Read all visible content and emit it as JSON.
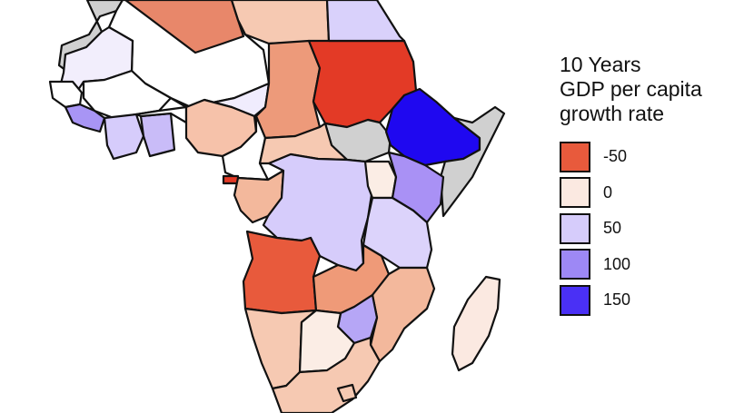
{
  "legend": {
    "title_lines": [
      "10 Years",
      "GDP per capita",
      "growth rate"
    ],
    "items": [
      {
        "label": "-50",
        "value": -50,
        "color": "#e85a3c"
      },
      {
        "label": "0",
        "value": 0,
        "color": "#fbe9e1"
      },
      {
        "label": "50",
        "value": 50,
        "color": "#d6ccfb"
      },
      {
        "label": "100",
        "value": 100,
        "color": "#9d88f5"
      },
      {
        "label": "150",
        "value": 150,
        "color": "#4a30f5"
      }
    ]
  },
  "colors": {
    "no_data": "#d0d0d0",
    "stroke": "#111111"
  },
  "regions": [
    {
      "id": "morocco-west-sahara",
      "color": "#d0d0d0"
    },
    {
      "id": "mauritania",
      "color": "#f2eefc"
    },
    {
      "id": "algeria",
      "color": "#ffffff"
    },
    {
      "id": "libya",
      "color": "#e8876a"
    },
    {
      "id": "egypt",
      "color": "#f6c9b2"
    },
    {
      "id": "sudan",
      "color": "#e33a26"
    },
    {
      "id": "south-sudan",
      "color": "#d0d0d0"
    },
    {
      "id": "ethiopia",
      "color": "#1f08f0"
    },
    {
      "id": "eritrea",
      "color": "#d9d1fb"
    },
    {
      "id": "somalia",
      "color": "#d0d0d0"
    },
    {
      "id": "kenya",
      "color": "#a991f5"
    },
    {
      "id": "mali",
      "color": "#ffffff"
    },
    {
      "id": "niger",
      "color": "#f0ecfd"
    },
    {
      "id": "chad",
      "color": "#ed9a7a"
    },
    {
      "id": "nigeria",
      "color": "#f6c2aa"
    },
    {
      "id": "senegal",
      "color": "#ffffff"
    },
    {
      "id": "guinea",
      "color": "#a895f5"
    },
    {
      "id": "ivory-coast",
      "color": "#d6ccfb"
    },
    {
      "id": "ghana",
      "color": "#c9bcf8"
    },
    {
      "id": "burkina-faso",
      "color": "#ffffff"
    },
    {
      "id": "cameroon",
      "color": "#ffffff"
    },
    {
      "id": "car",
      "color": "#f6c9b2"
    },
    {
      "id": "equatorial-guinea",
      "color": "#e33a26"
    },
    {
      "id": "gabon-congo",
      "color": "#f3b89c"
    },
    {
      "id": "drc",
      "color": "#d6ccfb"
    },
    {
      "id": "uganda",
      "color": "#fbede5"
    },
    {
      "id": "tanzania",
      "color": "#dcd3fb"
    },
    {
      "id": "angola",
      "color": "#e85a3c"
    },
    {
      "id": "zambia",
      "color": "#ef9a78"
    },
    {
      "id": "mozambique",
      "color": "#f3b89c"
    },
    {
      "id": "zimbabwe",
      "color": "#b6a6f6"
    },
    {
      "id": "namibia",
      "color": "#f6c9b2"
    },
    {
      "id": "botswana",
      "color": "#fbede5"
    },
    {
      "id": "south-africa",
      "color": "#f6c9b2"
    },
    {
      "id": "madagascar",
      "color": "#fbe9e1"
    },
    {
      "id": "lesotho",
      "color": "#f6c9b2"
    }
  ]
}
